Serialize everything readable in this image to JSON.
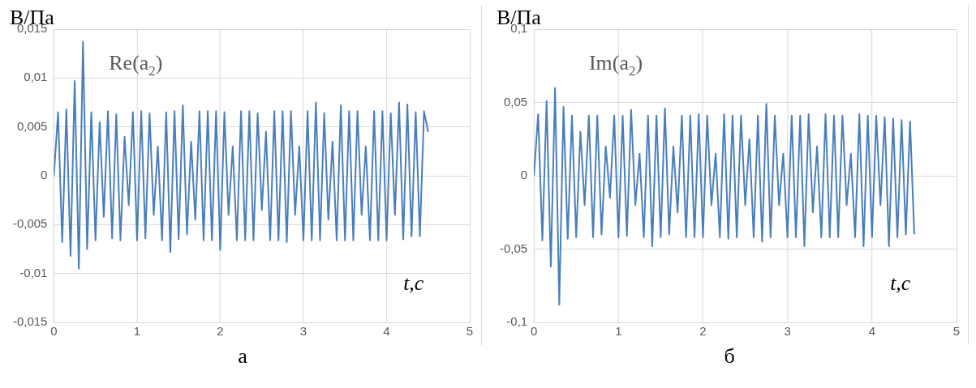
{
  "chart_data": [
    {
      "type": "line",
      "ylabel": "В/Па",
      "xlabel": "t,с",
      "annotations": [
        "Re(a$_{2}$)",
        "а"
      ],
      "color": "#4a7ebb",
      "grid": true,
      "marker": "none",
      "x": [
        0,
        0.05,
        0.1,
        0.15,
        0.2,
        0.25,
        0.3,
        0.35,
        0.4,
        0.45,
        0.5,
        0.55,
        0.6,
        0.65,
        0.7,
        0.75,
        0.8,
        0.85,
        0.9,
        0.95,
        1,
        1.05,
        1.1,
        1.15,
        1.2,
        1.25,
        1.3,
        1.35,
        1.4,
        1.45,
        1.5,
        1.55,
        1.6,
        1.65,
        1.7,
        1.75,
        1.8,
        1.85,
        1.9,
        1.95,
        2,
        2.05,
        2.1,
        2.15,
        2.2,
        2.25,
        2.3,
        2.35,
        2.4,
        2.45,
        2.5,
        2.55,
        2.6,
        2.65,
        2.7,
        2.75,
        2.8,
        2.85,
        2.9,
        2.95,
        3,
        3.05,
        3.1,
        3.15,
        3.2,
        3.25,
        3.3,
        3.35,
        3.4,
        3.45,
        3.5,
        3.55,
        3.6,
        3.65,
        3.7,
        3.75,
        3.8,
        3.85,
        3.9,
        3.95,
        4,
        4.05,
        4.1,
        4.15,
        4.2,
        4.25,
        4.3,
        4.35,
        4.4,
        4.45,
        4.5
      ],
      "values": [
        0,
        0.0065,
        -0.0068,
        0.0068,
        -0.0082,
        0.0097,
        -0.0095,
        0.0137,
        -0.0075,
        0.0065,
        -0.0066,
        0.0055,
        -0.0042,
        0.0066,
        -0.0064,
        0.0063,
        -0.0066,
        0.004,
        -0.003,
        0.0065,
        -0.0066,
        0.0066,
        -0.0064,
        0.0064,
        -0.004,
        0.003,
        -0.0066,
        0.0065,
        -0.0078,
        0.0066,
        -0.0065,
        0.0072,
        -0.006,
        0.0035,
        -0.0045,
        0.0066,
        -0.0066,
        0.0066,
        -0.0066,
        0.0066,
        -0.0076,
        0.0065,
        -0.004,
        0.003,
        -0.0066,
        0.0066,
        -0.0066,
        0.0066,
        -0.0066,
        0.0064,
        -0.0035,
        0.0045,
        -0.0066,
        0.0066,
        -0.0066,
        0.0066,
        -0.0068,
        0.0066,
        -0.004,
        0.003,
        -0.0066,
        0.0066,
        -0.0066,
        0.0075,
        -0.0066,
        0.0064,
        -0.0045,
        0.0035,
        -0.0066,
        0.0072,
        -0.0066,
        0.0066,
        -0.0066,
        0.0066,
        -0.004,
        0.003,
        -0.0066,
        0.0066,
        -0.0066,
        0.0066,
        -0.0066,
        0.0064,
        -0.004,
        0.0075,
        -0.0065,
        0.0073,
        -0.0062,
        0.0065,
        -0.0062,
        0.0066,
        0.0045
      ],
      "xlim": [
        0,
        5
      ],
      "xticks": [
        0,
        1,
        2,
        3,
        4,
        5
      ],
      "ylim": [
        -0.015,
        0.015
      ],
      "yticks": [
        {
          "value": -0.015,
          "label": "-0,015"
        },
        {
          "value": -0.01,
          "label": "-0,01"
        },
        {
          "value": -0.005,
          "label": "-0,005"
        },
        0,
        {
          "value": 0.005,
          "label": "0,005"
        },
        {
          "value": 0.01,
          "label": "0,01"
        },
        {
          "value": 0.015,
          "label": "0,015"
        }
      ]
    },
    {
      "type": "line",
      "ylabel": "В/Па",
      "xlabel": "t,с",
      "annotations": [
        "Im(a$_{2}$)",
        "б"
      ],
      "color": "#4a7ebb",
      "grid": true,
      "marker": "none",
      "x": [
        0,
        0.05,
        0.1,
        0.15,
        0.2,
        0.25,
        0.3,
        0.35,
        0.4,
        0.45,
        0.5,
        0.55,
        0.6,
        0.65,
        0.7,
        0.75,
        0.8,
        0.85,
        0.9,
        0.95,
        1,
        1.05,
        1.1,
        1.15,
        1.2,
        1.25,
        1.3,
        1.35,
        1.4,
        1.45,
        1.5,
        1.55,
        1.6,
        1.65,
        1.7,
        1.75,
        1.8,
        1.85,
        1.9,
        1.95,
        2,
        2.05,
        2.1,
        2.15,
        2.2,
        2.25,
        2.3,
        2.35,
        2.4,
        2.45,
        2.5,
        2.55,
        2.6,
        2.65,
        2.7,
        2.75,
        2.8,
        2.85,
        2.9,
        2.95,
        3,
        3.05,
        3.1,
        3.15,
        3.2,
        3.25,
        3.3,
        3.35,
        3.4,
        3.45,
        3.5,
        3.55,
        3.6,
        3.65,
        3.7,
        3.75,
        3.8,
        3.85,
        3.9,
        3.95,
        4,
        4.05,
        4.1,
        4.15,
        4.2,
        4.25,
        4.3,
        4.35,
        4.4,
        4.45,
        4.5
      ],
      "values": [
        0,
        0.042,
        -0.044,
        0.051,
        -0.062,
        0.06,
        -0.088,
        0.047,
        -0.043,
        0.041,
        -0.042,
        0.03,
        -0.02,
        0.041,
        -0.042,
        0.041,
        -0.04,
        0.02,
        -0.015,
        0.041,
        -0.042,
        0.041,
        -0.041,
        0.045,
        -0.02,
        0.015,
        -0.042,
        0.041,
        -0.048,
        0.041,
        -0.042,
        0.046,
        -0.04,
        0.02,
        -0.025,
        0.041,
        -0.042,
        0.041,
        -0.042,
        0.042,
        -0.042,
        0.041,
        -0.02,
        0.015,
        -0.042,
        0.042,
        -0.043,
        0.041,
        -0.042,
        0.041,
        -0.02,
        0.025,
        -0.042,
        0.041,
        -0.045,
        0.049,
        -0.042,
        0.041,
        -0.02,
        0.015,
        -0.042,
        0.041,
        -0.042,
        0.041,
        -0.048,
        0.042,
        -0.025,
        0.02,
        -0.042,
        0.042,
        -0.042,
        0.041,
        -0.042,
        0.041,
        -0.02,
        0.015,
        -0.042,
        0.042,
        -0.048,
        0.041,
        -0.042,
        0.041,
        -0.02,
        0.04,
        -0.048,
        0.039,
        -0.042,
        0.038,
        -0.04,
        0.037,
        -0.04
      ],
      "xlim": [
        0,
        5
      ],
      "xticks": [
        0,
        1,
        2,
        3,
        4,
        5
      ],
      "ylim": [
        -0.1,
        0.1
      ],
      "yticks": [
        {
          "value": -0.1,
          "label": "-0,1"
        },
        {
          "value": -0.05,
          "label": "-0,05"
        },
        0,
        {
          "value": 0.05,
          "label": "0,05"
        },
        {
          "value": 0.1,
          "label": "0,1"
        }
      ]
    }
  ]
}
